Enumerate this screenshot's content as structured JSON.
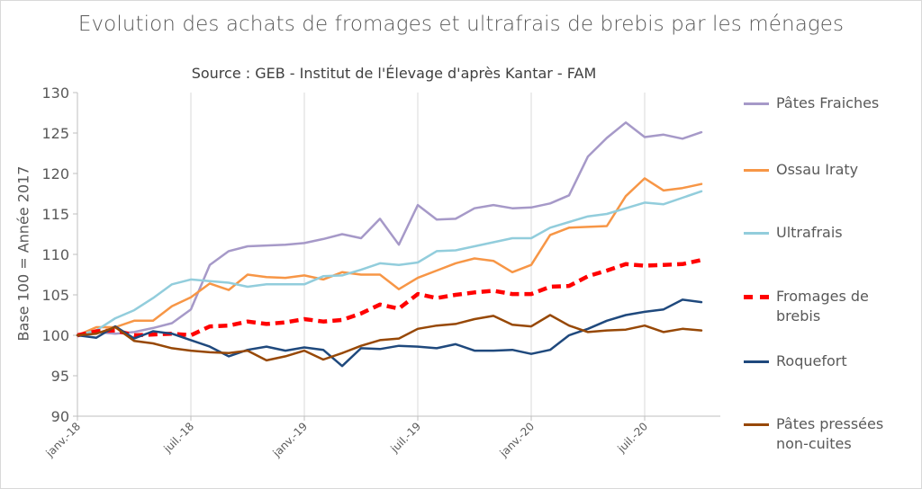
{
  "chart_data": {
    "type": "line",
    "title": "Evolution des achats de fromages et ultrafrais de brebis par les ménages",
    "subtitle": "Source : GEB - Institut de l'Élevage d'après Kantar - FAM",
    "ylabel": "Base 100 = Année 2017",
    "ylim": [
      90,
      130
    ],
    "yticks": [
      90,
      95,
      100,
      105,
      110,
      115,
      120,
      125,
      130
    ],
    "xtick_labels": [
      "janv.-18",
      "juil.-18",
      "janv.-19",
      "juil.-19",
      "janv.-20",
      "juil.-20"
    ],
    "x": [
      "2018-01",
      "2018-02",
      "2018-03",
      "2018-04",
      "2018-05",
      "2018-06",
      "2018-07",
      "2018-08",
      "2018-09",
      "2018-10",
      "2018-11",
      "2018-12",
      "2019-01",
      "2019-02",
      "2019-03",
      "2019-04",
      "2019-05",
      "2019-06",
      "2019-07",
      "2019-08",
      "2019-09",
      "2019-10",
      "2019-11",
      "2019-12",
      "2020-01",
      "2020-02",
      "2020-03",
      "2020-04",
      "2020-05",
      "2020-06",
      "2020-07",
      "2020-08",
      "2020-09",
      "2020-10",
      "2020-11"
    ],
    "grid": "vertical",
    "legend_position": "right",
    "series": [
      {
        "name": "Pâtes Fraiches",
        "color": "#a699c8",
        "dash": false,
        "values": [
          100,
          100.4,
          100.2,
          100.4,
          100.9,
          101.5,
          103.2,
          108.7,
          110.4,
          111.0,
          111.1,
          111.2,
          111.4,
          111.9,
          112.5,
          112.0,
          114.4,
          111.2,
          116.1,
          114.3,
          114.4,
          115.7,
          116.1,
          115.7,
          115.8,
          116.3,
          117.3,
          122.1,
          124.4,
          126.3,
          124.5,
          124.8,
          124.3,
          125.1,
          null
        ]
      },
      {
        "name": "Ossau Iraty",
        "color": "#f79646",
        "dash": false,
        "values": [
          100,
          101.0,
          101.0,
          101.8,
          101.8,
          103.6,
          104.7,
          106.4,
          105.6,
          107.5,
          107.2,
          107.1,
          107.4,
          106.9,
          107.8,
          107.5,
          107.5,
          105.7,
          107.1,
          108.0,
          108.9,
          109.5,
          109.2,
          107.8,
          108.7,
          112.4,
          113.3,
          113.4,
          113.5,
          117.2,
          119.4,
          117.9,
          118.2,
          118.7,
          null
        ]
      },
      {
        "name": "Ultrafrais",
        "color": "#92cddc",
        "dash": false,
        "values": [
          100,
          100.6,
          102.1,
          103.1,
          104.6,
          106.3,
          106.9,
          106.7,
          106.5,
          106.0,
          106.3,
          106.3,
          106.3,
          107.3,
          107.4,
          108.1,
          108.9,
          108.7,
          109.0,
          110.4,
          110.5,
          111.0,
          111.5,
          112.0,
          112.0,
          113.3,
          114.0,
          114.7,
          115.0,
          115.7,
          116.4,
          116.2,
          117.0,
          117.8,
          null
        ]
      },
      {
        "name": "Fromages de brebis",
        "color": "#ff0000",
        "dash": true,
        "values": [
          100,
          100.5,
          100.6,
          100.0,
          100.1,
          100.2,
          100.0,
          101.1,
          101.2,
          101.7,
          101.4,
          101.6,
          102.0,
          101.7,
          101.9,
          102.7,
          103.8,
          103.3,
          105.1,
          104.6,
          105.0,
          105.3,
          105.5,
          105.1,
          105.1,
          106.0,
          106.1,
          107.3,
          108.0,
          108.8,
          108.6,
          108.7,
          108.8,
          109.3,
          null
        ]
      },
      {
        "name": "Roquefort",
        "color": "#1f497d",
        "dash": false,
        "values": [
          100,
          99.7,
          101.1,
          99.6,
          100.5,
          100.2,
          99.4,
          98.6,
          97.4,
          98.2,
          98.6,
          98.1,
          98.5,
          98.2,
          96.2,
          98.4,
          98.3,
          98.7,
          98.6,
          98.4,
          98.9,
          98.1,
          98.1,
          98.2,
          97.7,
          98.2,
          100.0,
          100.8,
          101.8,
          102.5,
          102.9,
          103.2,
          104.4,
          104.1,
          null
        ]
      },
      {
        "name": "Pâtes pressées non-cuites",
        "color": "#974806",
        "dash": false,
        "values": [
          100,
          100.2,
          101.0,
          99.3,
          99.0,
          98.4,
          98.1,
          97.9,
          97.8,
          98.1,
          96.9,
          97.4,
          98.1,
          97.0,
          97.8,
          98.7,
          99.4,
          99.6,
          100.8,
          101.2,
          101.4,
          102.0,
          102.4,
          101.3,
          101.1,
          102.5,
          101.2,
          100.4,
          100.6,
          100.7,
          101.2,
          100.4,
          100.8,
          100.6,
          null
        ]
      }
    ]
  },
  "legend": {
    "items": [
      {
        "label": "Pâtes Fraiches"
      },
      {
        "label": "Ossau Iraty"
      },
      {
        "label": "Ultrafrais"
      },
      {
        "label": "Fromages de brebis"
      },
      {
        "label": "Roquefort"
      },
      {
        "label": "Pâtes pressées non-cuites"
      }
    ]
  }
}
